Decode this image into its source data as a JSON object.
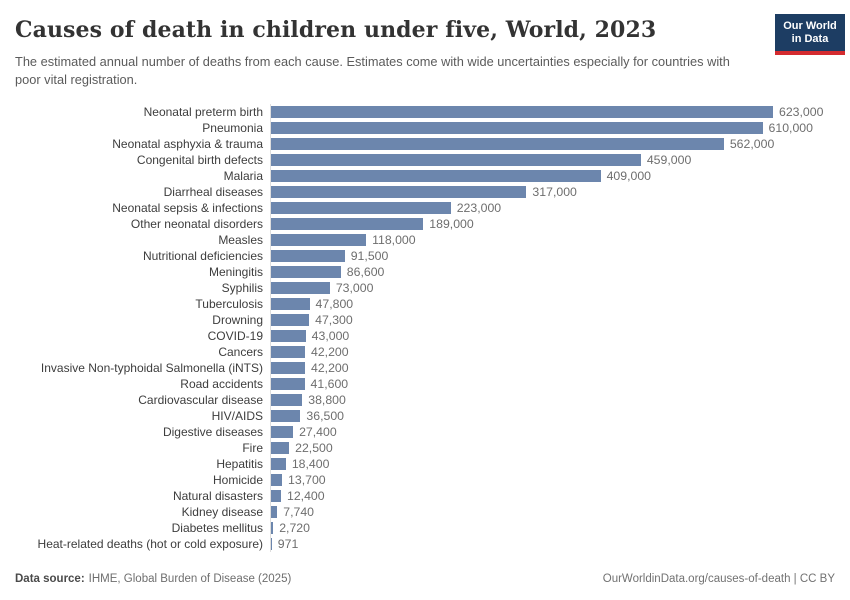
{
  "header": {
    "title": "Causes of death in children under five, World, 2023",
    "subtitle": "The estimated annual number of deaths from each cause. Estimates come with wide uncertainties especially for countries with poor vital registration.",
    "logo": {
      "line1": "Our World",
      "line2": "in Data",
      "bg_color": "#1d3d63",
      "accent_color": "#d42b2f"
    }
  },
  "chart_data": {
    "type": "bar",
    "orientation": "horizontal",
    "title": "Causes of death in children under five, World, 2023",
    "xlabel": "",
    "ylabel": "",
    "xlim": [
      0,
      623000
    ],
    "grid": false,
    "legend": false,
    "value_labels_shown": true,
    "bar_color": "#6c86ad",
    "axis_line_color": "#dedede",
    "categories": [
      "Neonatal preterm birth",
      "Pneumonia",
      "Neonatal asphyxia & trauma",
      "Congenital birth defects",
      "Malaria",
      "Diarrheal diseases",
      "Neonatal sepsis & infections",
      "Other neonatal disorders",
      "Measles",
      "Nutritional deficiencies",
      "Meningitis",
      "Syphilis",
      "Tuberculosis",
      "Drowning",
      "COVID-19",
      "Cancers",
      "Invasive Non-typhoidal Salmonella (iNTS)",
      "Road accidents",
      "Cardiovascular disease",
      "HIV/AIDS",
      "Digestive diseases",
      "Fire",
      "Hepatitis",
      "Homicide",
      "Natural disasters",
      "Kidney disease",
      "Diabetes mellitus",
      "Heat-related deaths (hot or cold exposure)"
    ],
    "values": [
      623000,
      610000,
      562000,
      459000,
      409000,
      317000,
      223000,
      189000,
      118000,
      91500,
      86600,
      73000,
      47800,
      47300,
      43000,
      42200,
      42200,
      41600,
      38800,
      36500,
      27400,
      22500,
      18400,
      13700,
      12400,
      7740,
      2720,
      971
    ],
    "value_labels": [
      "623,000",
      "610,000",
      "562,000",
      "459,000",
      "409,000",
      "317,000",
      "223,000",
      "189,000",
      "118,000",
      "91,500",
      "86,600",
      "73,000",
      "47,800",
      "47,300",
      "43,000",
      "42,200",
      "42,200",
      "41,600",
      "38,800",
      "36,500",
      "27,400",
      "22,500",
      "18,400",
      "13,700",
      "12,400",
      "7,740",
      "2,720",
      "971"
    ]
  },
  "footer": {
    "source_label": "Data source:",
    "source_text": "IHME, Global Burden of Disease (2025)",
    "attribution": "OurWorldinData.org/causes-of-death | CC BY"
  }
}
